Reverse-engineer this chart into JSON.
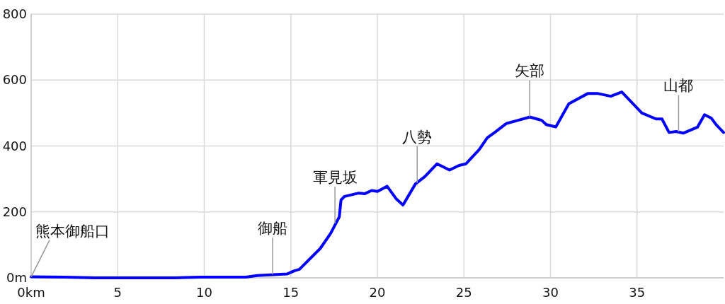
{
  "chart_data": {
    "type": "line",
    "xlim": [
      0,
      40
    ],
    "ylim": [
      0,
      800
    ],
    "xticks": [
      {
        "value": 0,
        "label": "0km"
      },
      5,
      10,
      15,
      20,
      25,
      30,
      35
    ],
    "yticks": [
      {
        "value": 0,
        "label": "0m"
      },
      200,
      400,
      600,
      800
    ],
    "grid": true,
    "marker": "none",
    "series": [
      {
        "color": "#0000ff",
        "x": [
          0,
          1.9,
          3.7,
          5.5,
          7.3,
          8.3,
          9.8,
          12.4,
          13.05,
          14.8,
          15.2,
          15.5,
          16.7,
          17.3,
          17.8,
          17.9,
          18.1,
          18.92,
          19.26,
          19.67,
          20.01,
          20.56,
          21.1,
          21.48,
          22.2,
          22.74,
          23.45,
          24.17,
          24.72,
          25.12,
          25.88,
          26.35,
          26.83,
          27.44,
          28.06,
          28.81,
          29.49,
          29.76,
          30.31,
          31.06,
          32.15,
          32.76,
          33.48,
          34.12,
          35.28,
          36.1,
          36.44,
          36.85,
          37.26,
          37.67,
          38.49,
          38.9,
          39.3,
          39.58,
          40
        ],
        "values": [
          3,
          2,
          0,
          0,
          0,
          0,
          2,
          2,
          7,
          12,
          21,
          26,
          89,
          135,
          185,
          236,
          247,
          257,
          255,
          265,
          262,
          278,
          239,
          221,
          285,
          307,
          346,
          327,
          341,
          346,
          389,
          425,
          443,
          468,
          477,
          488,
          478,
          465,
          458,
          528,
          559,
          559,
          551,
          564,
          500,
          482,
          482,
          441,
          444,
          439,
          457,
          495,
          484,
          464,
          441
        ]
      }
    ],
    "annotations": [
      {
        "text": "熊本御船口",
        "x": 0,
        "y": 3
      },
      {
        "text": "御船",
        "x": 13.95,
        "y": 10
      },
      {
        "text": "軍見坂",
        "x": 17.55,
        "y": 165
      },
      {
        "text": "八勢",
        "x": 22.3,
        "y": 288
      },
      {
        "text": "矢部",
        "x": 28.8,
        "y": 488
      },
      {
        "text": "山都",
        "x": 37.4,
        "y": 443
      }
    ]
  }
}
